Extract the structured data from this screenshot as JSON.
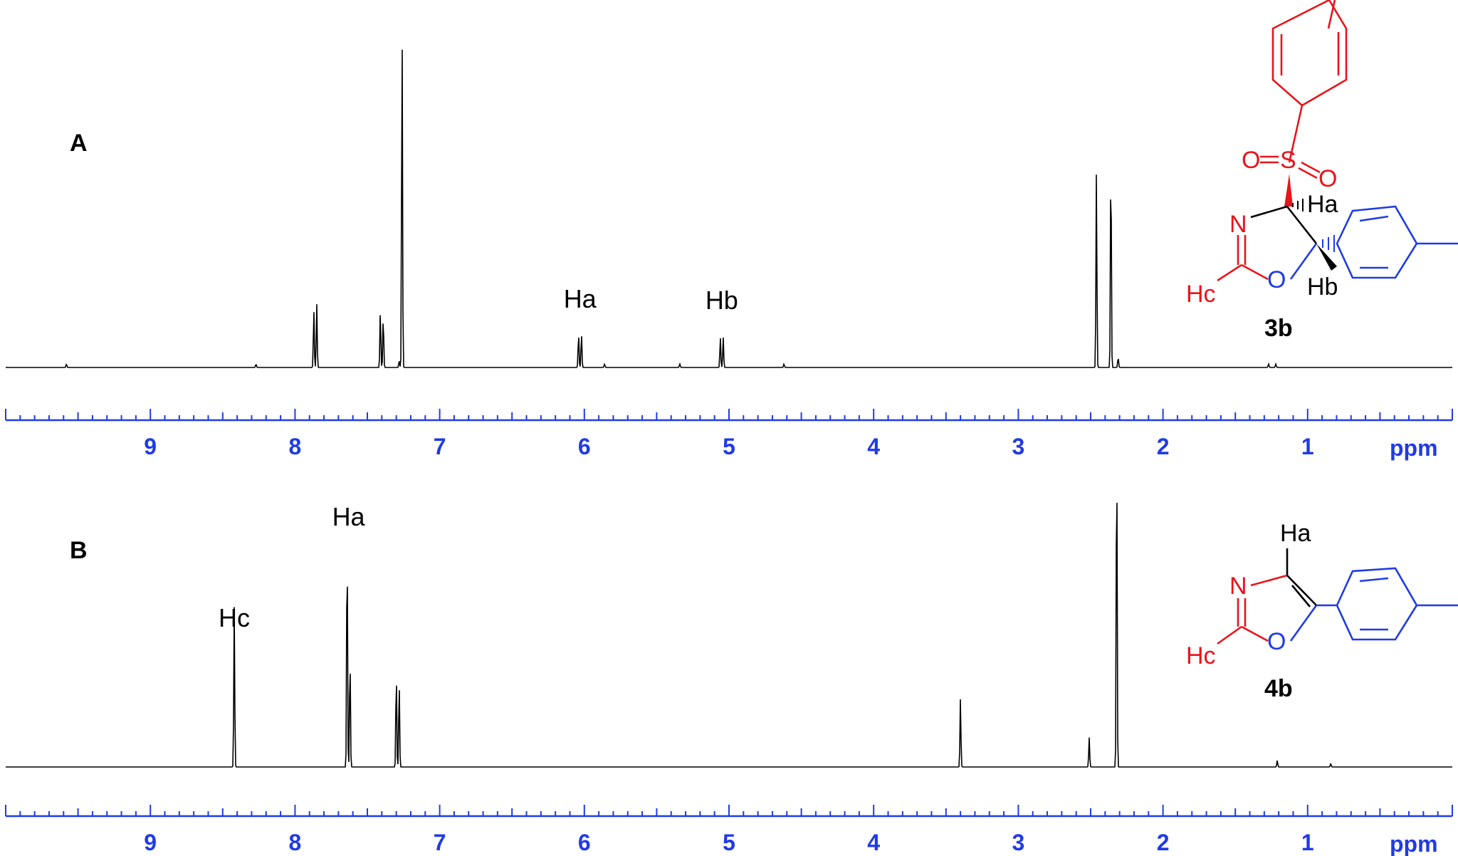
{
  "chart_data": [
    {
      "type": "line",
      "panel_label": "A",
      "xlabel": "ppm",
      "xlim": [
        10.0,
        0.0
      ],
      "x_ticks": [
        "9",
        "8",
        "7",
        "6",
        "5",
        "4",
        "3",
        "2",
        "1"
      ],
      "x_reversed": true,
      "baseline": 0,
      "peaks": [
        {
          "ppm": 9.58,
          "height": 0.01
        },
        {
          "ppm": 8.27,
          "height": 0.01
        },
        {
          "ppm": 7.87,
          "height": 0.17
        },
        {
          "ppm": 7.85,
          "height": 0.19
        },
        {
          "ppm": 7.41,
          "height": 0.17
        },
        {
          "ppm": 7.39,
          "height": 0.15
        },
        {
          "ppm": 7.28,
          "height": 0.02
        },
        {
          "ppm": 7.26,
          "height": 1.0
        },
        {
          "ppm": 6.04,
          "height": 0.1
        },
        {
          "ppm": 6.02,
          "height": 0.1
        },
        {
          "ppm": 5.86,
          "height": 0.01
        },
        {
          "ppm": 5.34,
          "height": 0.01
        },
        {
          "ppm": 5.06,
          "height": 0.09
        },
        {
          "ppm": 5.04,
          "height": 0.09
        },
        {
          "ppm": 4.62,
          "height": 0.01
        },
        {
          "ppm": 2.46,
          "height": 0.58
        },
        {
          "ppm": 2.36,
          "height": 0.63
        },
        {
          "ppm": 2.31,
          "height": 0.03
        },
        {
          "ppm": 1.27,
          "height": 0.01
        },
        {
          "ppm": 1.22,
          "height": 0.01
        }
      ],
      "annotations": [
        {
          "text": "Ha",
          "ppm": 6.03
        },
        {
          "text": "Hb",
          "ppm": 5.05
        }
      ]
    },
    {
      "type": "line",
      "panel_label": "B",
      "xlabel": "ppm",
      "xlim": [
        10.0,
        0.0
      ],
      "x_ticks": [
        "9",
        "8",
        "7",
        "6",
        "5",
        "4",
        "3",
        "2",
        "1"
      ],
      "x_reversed": true,
      "baseline": 0,
      "peaks": [
        {
          "ppm": 8.42,
          "height": 0.49
        },
        {
          "ppm": 7.64,
          "height": 0.7
        },
        {
          "ppm": 7.62,
          "height": 0.34
        },
        {
          "ppm": 7.3,
          "height": 0.29
        },
        {
          "ppm": 7.28,
          "height": 0.26
        },
        {
          "ppm": 3.4,
          "height": 0.21
        },
        {
          "ppm": 2.51,
          "height": 0.09
        },
        {
          "ppm": 2.32,
          "height": 1.0
        },
        {
          "ppm": 1.21,
          "height": 0.02
        },
        {
          "ppm": 0.84,
          "height": 0.01
        }
      ],
      "annotations": [
        {
          "text": "Hc",
          "ppm": 8.42
        },
        {
          "text": "Ha",
          "ppm": 7.63
        }
      ]
    }
  ],
  "structures": {
    "compound_3b": {
      "label": "3b",
      "atoms": {
        "oxygen1": "O",
        "sulfur": "S",
        "oxygen2": "O",
        "nitrogen": "N",
        "ring_oxygen": "O",
        "hc": "Hc",
        "ha": "Ha",
        "hb": "Hb"
      }
    },
    "compound_4b": {
      "label": "4b",
      "atoms": {
        "nitrogen": "N",
        "ring_oxygen": "O",
        "hc": "Hc",
        "ha": "Ha"
      }
    }
  },
  "colors": {
    "axis": "#1f3be6",
    "trace": "#000000",
    "tosyl": "#e8141b",
    "aryl": "#1f3be6"
  }
}
